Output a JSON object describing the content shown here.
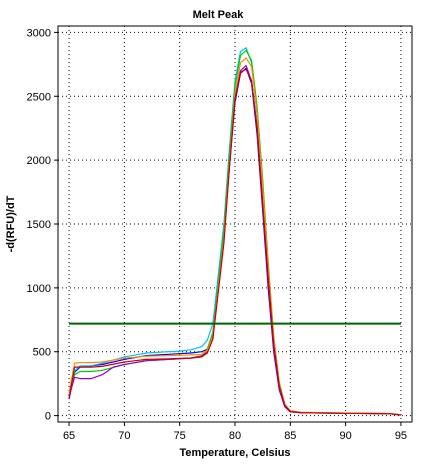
{
  "chart_data": {
    "type": "line",
    "title": "Melt Peak",
    "xlabel": "Temperature, Celsius",
    "ylabel": "-d(RFU)/dT",
    "xlim": [
      64,
      96
    ],
    "ylim": [
      -50,
      3050
    ],
    "xticks": [
      65,
      70,
      75,
      80,
      85,
      90,
      95
    ],
    "yticks": [
      0,
      500,
      1000,
      1500,
      2000,
      2500,
      3000
    ],
    "grid": true,
    "threshold": {
      "value": 720,
      "x_range": [
        65,
        95
      ],
      "color": "#006400"
    },
    "series": [
      {
        "color": "#0000ff",
        "x": [
          65,
          65.5,
          66,
          67,
          68,
          70,
          72,
          74,
          75,
          76,
          77,
          77.5,
          78,
          79,
          79.5,
          80,
          80.5,
          81,
          81.5,
          82,
          82.5,
          83,
          83.5,
          84,
          84.5,
          85,
          86,
          90,
          94,
          95
        ],
        "y": [
          130,
          340,
          380,
          390,
          400,
          440,
          470,
          480,
          485,
          490,
          500,
          520,
          640,
          1400,
          1950,
          2450,
          2680,
          2720,
          2600,
          2200,
          1600,
          1000,
          500,
          200,
          70,
          30,
          22,
          18,
          15,
          5
        ]
      },
      {
        "color": "#00bfff",
        "x": [
          65,
          65.5,
          66,
          67,
          68,
          70,
          72,
          74,
          75,
          76,
          77,
          77.5,
          78,
          79,
          79.5,
          80,
          80.5,
          81,
          81.5,
          82,
          82.5,
          83,
          83.5,
          84,
          84.5,
          85,
          86,
          90,
          94,
          95
        ],
        "y": [
          180,
          350,
          390,
          390,
          410,
          460,
          490,
          500,
          505,
          515,
          540,
          590,
          720,
          1500,
          2100,
          2620,
          2850,
          2880,
          2760,
          2350,
          1750,
          1100,
          560,
          230,
          80,
          35,
          25,
          20,
          16,
          6
        ]
      },
      {
        "color": "#00cc00",
        "x": [
          65,
          65.5,
          66,
          67,
          68,
          70,
          72,
          74,
          75,
          76,
          77,
          77.5,
          78,
          79,
          79.5,
          80,
          80.5,
          81,
          81.5,
          82,
          82.5,
          83,
          83.5,
          84,
          84.5,
          85,
          86,
          90,
          94,
          95
        ],
        "y": [
          150,
          320,
          345,
          345,
          355,
          400,
          430,
          440,
          445,
          450,
          470,
          520,
          650,
          1450,
          2050,
          2580,
          2820,
          2860,
          2780,
          2420,
          1850,
          1200,
          620,
          260,
          90,
          38,
          25,
          20,
          16,
          6
        ]
      },
      {
        "color": "#9900cc",
        "x": [
          65,
          65.5,
          66,
          67,
          68,
          69,
          70,
          72,
          74,
          75,
          76,
          77,
          77.5,
          78,
          79,
          79.5,
          80,
          80.5,
          81,
          81.5,
          82,
          82.5,
          83,
          83.5,
          84,
          84.5,
          85,
          86,
          90,
          94,
          95
        ],
        "y": [
          150,
          300,
          290,
          290,
          320,
          380,
          400,
          430,
          440,
          445,
          450,
          465,
          500,
          620,
          1380,
          1980,
          2480,
          2700,
          2740,
          2620,
          2250,
          1650,
          1050,
          520,
          210,
          70,
          30,
          22,
          18,
          15,
          5
        ]
      },
      {
        "color": "#ff8c00",
        "x": [
          65,
          65.5,
          66,
          67,
          68,
          70,
          72,
          74,
          75,
          76,
          77,
          77.5,
          78,
          79,
          79.5,
          80,
          80.5,
          81,
          81.5,
          82,
          82.5,
          83,
          83.5,
          84,
          84.5,
          85,
          86,
          90,
          94,
          95
        ],
        "y": [
          180,
          410,
          415,
          415,
          420,
          450,
          465,
          470,
          472,
          475,
          480,
          510,
          620,
          1380,
          1980,
          2520,
          2760,
          2800,
          2730,
          2380,
          1800,
          1180,
          610,
          255,
          88,
          36,
          25,
          20,
          16,
          6
        ]
      },
      {
        "color": "#cc0000",
        "x": [
          65,
          65.5,
          66,
          67,
          68,
          70,
          72,
          74,
          75,
          76,
          77,
          77.5,
          78,
          79,
          79.5,
          80,
          80.5,
          81,
          81.5,
          82,
          82.5,
          83,
          83.5,
          84,
          84.5,
          85,
          86,
          90,
          94,
          95
        ],
        "y": [
          140,
          380,
          380,
          380,
          385,
          420,
          440,
          445,
          448,
          450,
          460,
          490,
          600,
          1350,
          1950,
          2480,
          2690,
          2710,
          2620,
          2250,
          1650,
          1080,
          560,
          230,
          80,
          32,
          23,
          18,
          15,
          5
        ]
      }
    ]
  }
}
